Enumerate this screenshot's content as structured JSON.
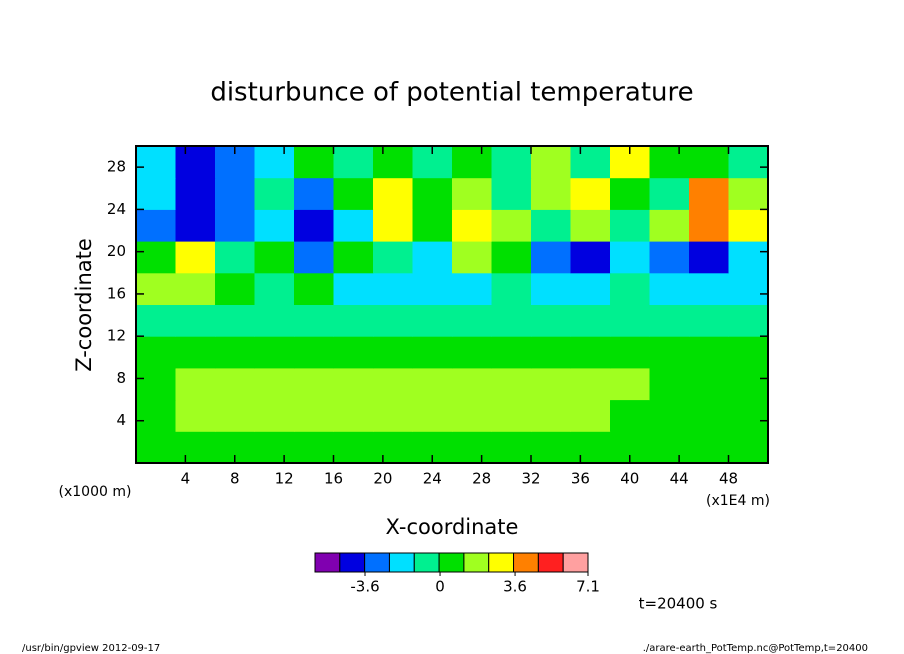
{
  "chart_data": {
    "type": "contour",
    "title": "disturbunce of potential temperature",
    "xlabel": "X-coordinate",
    "ylabel": "Z-coordinate",
    "xunit": "(x1E4 m)",
    "yunit": "(x1000 m)",
    "annotation": "t=20400 s",
    "footer_left": "/usr/bin/gpview  2012-09-17",
    "footer_right": "./arare-earth_PotTemp.nc@PotTemp,t=20400",
    "xlim": [
      0,
      51.2
    ],
    "ylim": [
      0,
      30
    ],
    "xticks": [
      4,
      8,
      12,
      16,
      20,
      24,
      28,
      32,
      36,
      40,
      44,
      48
    ],
    "yticks": [
      4,
      8,
      12,
      16,
      20,
      24,
      28
    ],
    "x": [
      1.6,
      4.8,
      8,
      11.2,
      14.4,
      17.6,
      20.8,
      24,
      27.2,
      30.4,
      33.6,
      36.8,
      40,
      43.2,
      46.4,
      49.6
    ],
    "y": [
      1.5,
      4.5,
      7.5,
      10.5,
      13.5,
      16.5,
      19.5,
      22.5,
      25.5,
      28.5
    ],
    "z": [
      [
        0.3,
        0.5,
        0.6,
        0.6,
        0.5,
        0.6,
        0.6,
        0.5,
        0.6,
        0.6,
        0.5,
        0.5,
        0.4,
        0.4,
        0.3,
        0.3
      ],
      [
        0.8,
        1.3,
        1.5,
        1.5,
        1.4,
        1.5,
        1.5,
        1.4,
        1.5,
        1.4,
        1.3,
        1.2,
        0.9,
        0.8,
        0.7,
        0.6
      ],
      [
        1,
        1.5,
        1.6,
        1.5,
        1.4,
        1.6,
        1.5,
        1.7,
        1.6,
        1.6,
        1.4,
        1.5,
        1.3,
        1,
        0.8,
        0.7
      ],
      [
        0.5,
        0.5,
        0.6,
        0.5,
        0.5,
        0.6,
        0.5,
        0.5,
        0.6,
        0.5,
        0.5,
        0.6,
        0.5,
        0.5,
        0.4,
        0.5
      ],
      [
        -1,
        -0.8,
        -1,
        -0.5,
        -0.5,
        -0.7,
        -0.5,
        -0.4,
        -0.6,
        -0.5,
        -0.7,
        -0.6,
        -0.4,
        -0.5,
        -0.6,
        -0.8
      ],
      [
        1.5,
        2,
        0.5,
        -1,
        1,
        -1.5,
        -2,
        -1.5,
        -2,
        -1,
        -1.5,
        -2,
        -1,
        -1.5,
        -2,
        -1.5
      ],
      [
        1,
        3,
        -1,
        0.5,
        -3,
        1,
        -1,
        -2,
        2,
        0.5,
        -2.5,
        -4,
        -2,
        -3,
        -4.5,
        -2
      ],
      [
        -3,
        -4,
        -3,
        -2,
        -4.5,
        -2,
        2.5,
        0.8,
        3,
        2,
        -0.5,
        1.5,
        -1,
        2,
        4.5,
        3
      ],
      [
        -2,
        -4.2,
        -3,
        -1,
        -3.5,
        0.5,
        2.5,
        0.5,
        1.5,
        -1,
        2,
        3.5,
        1,
        -0.5,
        4,
        2
      ],
      [
        -1.5,
        -4,
        -3,
        -2,
        0.5,
        -1,
        1,
        -0.5,
        0.8,
        -1,
        2,
        -0.5,
        3,
        1,
        0.5,
        -0.5
      ]
    ],
    "clim": [
      -6,
      7.1
    ],
    "colors": [
      "#8000b0",
      "#0000e0",
      "#0070ff",
      "#00e0ff",
      "#00f090",
      "#00e000",
      "#a0ff20",
      "#ffff00",
      "#ff8000",
      "#ff2020",
      "#ffa0a0"
    ],
    "cticks": [
      -3.6,
      0,
      3.6,
      7.1
    ]
  }
}
